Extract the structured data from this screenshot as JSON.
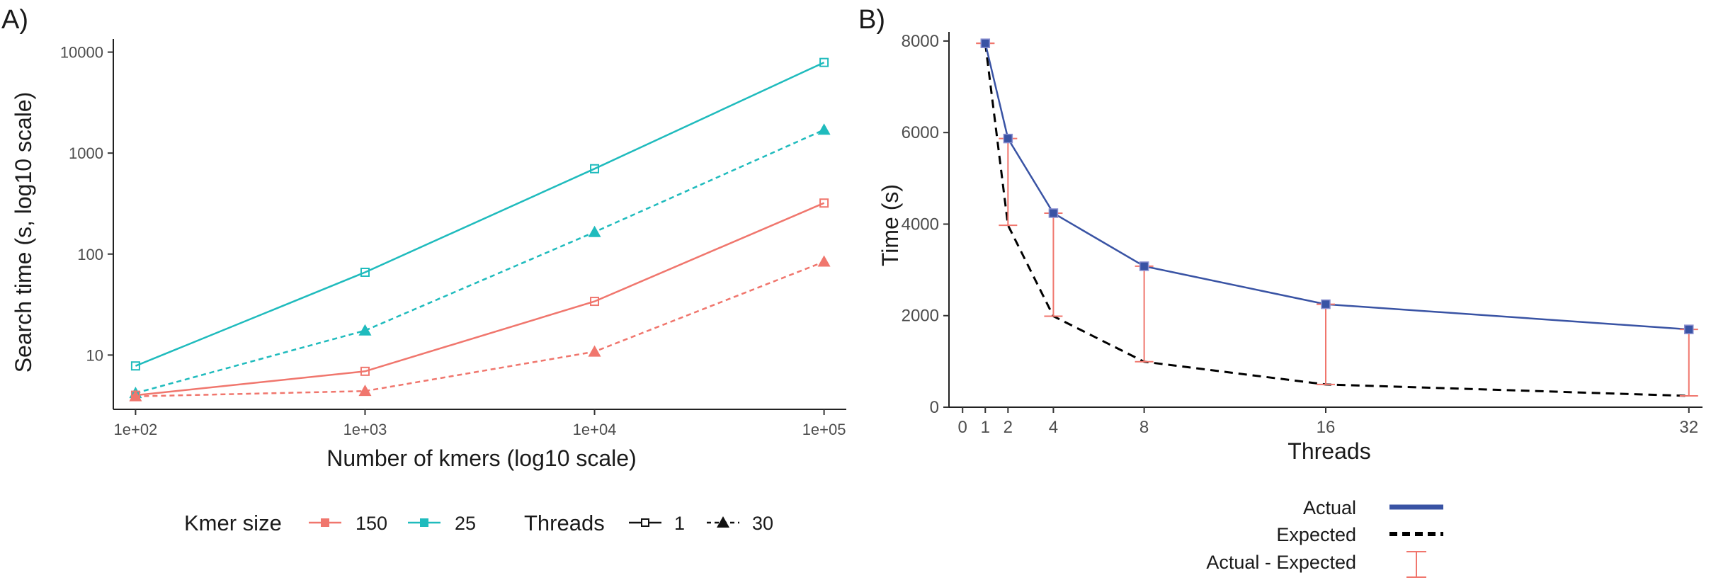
{
  "chart_data": [
    {
      "panel_label": "A)",
      "type": "line",
      "xlabel": "Number of kmers (log10 scale)",
      "ylabel": "Search time (s, log10 scale)",
      "x_scale": "log10",
      "y_scale": "log10",
      "xlim": [
        80,
        125000
      ],
      "ylim": [
        2.9,
        13500
      ],
      "x_ticks": [
        100,
        1000,
        10000,
        100000
      ],
      "x_tick_labels": [
        "1e+02",
        "1e+03",
        "1e+04",
        "1e+05"
      ],
      "y_ticks": [
        10,
        100,
        1000,
        10000
      ],
      "y_tick_labels": [
        "10",
        "100",
        "1000",
        "10000"
      ],
      "grid": false,
      "legend_placement": "bottom",
      "series": [
        {
          "kmer_size": "25",
          "threads": "1",
          "color": "#1fbbbd",
          "linestyle": "solid",
          "marker": "open-square",
          "x": [
            100,
            1000,
            10000,
            100000
          ],
          "y": [
            7.8,
            66,
            700,
            7900
          ]
        },
        {
          "kmer_size": "25",
          "threads": "30",
          "color": "#1fbbbd",
          "linestyle": "dashed",
          "marker": "filled-triangle",
          "x": [
            100,
            1000,
            10000,
            100000
          ],
          "y": [
            4.2,
            17.5,
            165,
            1700
          ]
        },
        {
          "kmer_size": "150",
          "threads": "1",
          "color": "#f0766d",
          "linestyle": "solid",
          "marker": "open-square",
          "x": [
            100,
            1000,
            10000,
            100000
          ],
          "y": [
            4.0,
            6.9,
            34,
            320
          ]
        },
        {
          "kmer_size": "150",
          "threads": "30",
          "color": "#f0766d",
          "linestyle": "dashed",
          "marker": "filled-triangle",
          "x": [
            100,
            1000,
            10000,
            100000
          ],
          "y": [
            3.9,
            4.4,
            10.8,
            84
          ]
        }
      ],
      "legends": [
        {
          "title": "Kmer size",
          "entries": [
            {
              "label": "150",
              "color": "#f0766d"
            },
            {
              "label": "25",
              "color": "#1fbbbd"
            }
          ]
        },
        {
          "title": "Threads",
          "entries": [
            {
              "label": "1",
              "linestyle": "solid",
              "marker": "open-square"
            },
            {
              "label": "30",
              "linestyle": "dashed",
              "marker": "filled-triangle"
            }
          ]
        }
      ]
    },
    {
      "panel_label": "B)",
      "type": "line",
      "xlabel": "Threads",
      "ylabel": "Time (s)",
      "xlim": [
        -0.6,
        32.6
      ],
      "ylim": [
        0,
        8200
      ],
      "x_ticks": [
        0,
        1,
        2,
        4,
        8,
        16,
        32
      ],
      "x_tick_labels": [
        "0",
        "1",
        "2",
        "4",
        "8",
        "16",
        "32"
      ],
      "y_ticks": [
        0,
        2000,
        4000,
        6000,
        8000
      ],
      "y_tick_labels": [
        "0",
        "2000",
        "4000",
        "6000",
        "8000"
      ],
      "grid": false,
      "legend_placement": "bottom-right",
      "x": [
        1,
        2,
        4,
        8,
        16,
        32
      ],
      "series": [
        {
          "name": "Actual",
          "color": "#3953a4",
          "linestyle": "solid",
          "values": [
            7950,
            5870,
            4240,
            3080,
            2250,
            1700
          ]
        },
        {
          "name": "Expected",
          "color": "#000000",
          "linestyle": "dashed",
          "values": [
            7950,
            3975,
            1988,
            994,
            497,
            248
          ]
        }
      ],
      "difference": {
        "name": "Actual - Expected",
        "color": "#f0766d",
        "style": "errorbar"
      }
    }
  ]
}
